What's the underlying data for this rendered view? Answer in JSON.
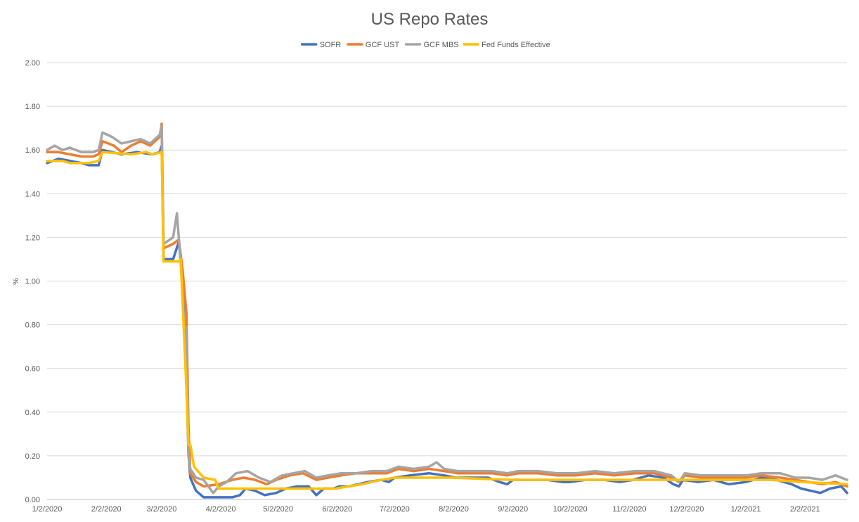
{
  "chart_data": {
    "type": "line",
    "title": "US Repo Rates",
    "xlabel": "",
    "ylabel": "%",
    "ylim": [
      0,
      2.0
    ],
    "y_ticks": [
      "0.00",
      "0.20",
      "0.40",
      "0.60",
      "0.80",
      "1.00",
      "1.20",
      "1.40",
      "1.60",
      "1.80",
      "2.00"
    ],
    "x_ticks": [
      "1/2/2020",
      "2/2/2020",
      "3/2/2020",
      "4/2/2020",
      "5/2/2020",
      "6/2/2020",
      "7/2/2020",
      "8/2/2020",
      "9/2/2020",
      "10/2/2020",
      "11/2/2020",
      "12/2/2020",
      "1/2/2021",
      "2/2/2021"
    ],
    "x_range": [
      "2020-01-02",
      "2021-02-24"
    ],
    "legend_position": "top",
    "grid": true,
    "series": [
      {
        "name": "SOFR",
        "color": "#4472c4",
        "points": [
          [
            "2020-01-02",
            1.54
          ],
          [
            "2020-01-08",
            1.56
          ],
          [
            "2020-01-14",
            1.55
          ],
          [
            "2020-01-20",
            1.54
          ],
          [
            "2020-01-24",
            1.53
          ],
          [
            "2020-01-29",
            1.53
          ],
          [
            "2020-01-31",
            1.6
          ],
          [
            "2020-02-10",
            1.58
          ],
          [
            "2020-02-18",
            1.59
          ],
          [
            "2020-02-26",
            1.58
          ],
          [
            "2020-03-01",
            1.59
          ],
          [
            "2020-03-02",
            1.62
          ],
          [
            "2020-03-03",
            1.1
          ],
          [
            "2020-03-08",
            1.1
          ],
          [
            "2020-03-11",
            1.18
          ],
          [
            "2020-03-13",
            1.0
          ],
          [
            "2020-03-15",
            0.55
          ],
          [
            "2020-03-16",
            0.22
          ],
          [
            "2020-03-17",
            0.1
          ],
          [
            "2020-03-20",
            0.04
          ],
          [
            "2020-03-24",
            0.01
          ],
          [
            "2020-04-01",
            0.01
          ],
          [
            "2020-04-08",
            0.01
          ],
          [
            "2020-04-12",
            0.02
          ],
          [
            "2020-04-15",
            0.05
          ],
          [
            "2020-04-20",
            0.04
          ],
          [
            "2020-04-25",
            0.02
          ],
          [
            "2020-05-01",
            0.03
          ],
          [
            "2020-05-06",
            0.05
          ],
          [
            "2020-05-12",
            0.06
          ],
          [
            "2020-05-18",
            0.06
          ],
          [
            "2020-05-22",
            0.02
          ],
          [
            "2020-05-26",
            0.05
          ],
          [
            "2020-05-31",
            0.05
          ],
          [
            "2020-06-03",
            0.06
          ],
          [
            "2020-06-08",
            0.06
          ],
          [
            "2020-06-13",
            0.07
          ],
          [
            "2020-06-18",
            0.08
          ],
          [
            "2020-06-25",
            0.09
          ],
          [
            "2020-06-29",
            0.08
          ],
          [
            "2020-07-02",
            0.1
          ],
          [
            "2020-07-10",
            0.11
          ],
          [
            "2020-07-20",
            0.12
          ],
          [
            "2020-07-28",
            0.11
          ],
          [
            "2020-08-03",
            0.1
          ],
          [
            "2020-08-12",
            0.1
          ],
          [
            "2020-08-20",
            0.1
          ],
          [
            "2020-08-26",
            0.08
          ],
          [
            "2020-08-30",
            0.07
          ],
          [
            "2020-09-02",
            0.09
          ],
          [
            "2020-09-10",
            0.09
          ],
          [
            "2020-09-20",
            0.09
          ],
          [
            "2020-09-28",
            0.08
          ],
          [
            "2020-10-02",
            0.08
          ],
          [
            "2020-10-10",
            0.09
          ],
          [
            "2020-10-20",
            0.09
          ],
          [
            "2020-10-28",
            0.08
          ],
          [
            "2020-11-04",
            0.09
          ],
          [
            "2020-11-12",
            0.11
          ],
          [
            "2020-11-20",
            0.1
          ],
          [
            "2020-11-25",
            0.07
          ],
          [
            "2020-11-28",
            0.06
          ],
          [
            "2020-11-30",
            0.09
          ],
          [
            "2020-12-08",
            0.08
          ],
          [
            "2020-12-16",
            0.09
          ],
          [
            "2020-12-24",
            0.07
          ],
          [
            "2021-01-02",
            0.08
          ],
          [
            "2021-01-10",
            0.1
          ],
          [
            "2021-01-18",
            0.09
          ],
          [
            "2021-01-26",
            0.07
          ],
          [
            "2021-01-31",
            0.05
          ],
          [
            "2021-02-05",
            0.04
          ],
          [
            "2021-02-10",
            0.03
          ],
          [
            "2021-02-15",
            0.05
          ],
          [
            "2021-02-21",
            0.06
          ],
          [
            "2021-02-24",
            0.03
          ]
        ]
      },
      {
        "name": "GCF UST",
        "color": "#ed7d31",
        "points": [
          [
            "2020-01-02",
            1.59
          ],
          [
            "2020-01-08",
            1.59
          ],
          [
            "2020-01-14",
            1.58
          ],
          [
            "2020-01-20",
            1.57
          ],
          [
            "2020-01-26",
            1.57
          ],
          [
            "2020-01-29",
            1.58
          ],
          [
            "2020-01-31",
            1.64
          ],
          [
            "2020-02-06",
            1.62
          ],
          [
            "2020-02-10",
            1.59
          ],
          [
            "2020-02-15",
            1.62
          ],
          [
            "2020-02-20",
            1.64
          ],
          [
            "2020-02-25",
            1.62
          ],
          [
            "2020-03-01",
            1.66
          ],
          [
            "2020-03-02",
            1.72
          ],
          [
            "2020-03-03",
            1.15
          ],
          [
            "2020-03-08",
            1.17
          ],
          [
            "2020-03-11",
            1.19
          ],
          [
            "2020-03-13",
            1.05
          ],
          [
            "2020-03-15",
            0.85
          ],
          [
            "2020-03-16",
            0.35
          ],
          [
            "2020-03-17",
            0.12
          ],
          [
            "2020-03-20",
            0.08
          ],
          [
            "2020-03-24",
            0.06
          ],
          [
            "2020-04-01",
            0.07
          ],
          [
            "2020-04-08",
            0.09
          ],
          [
            "2020-04-14",
            0.1
          ],
          [
            "2020-04-20",
            0.09
          ],
          [
            "2020-04-26",
            0.07
          ],
          [
            "2020-05-01",
            0.09
          ],
          [
            "2020-05-08",
            0.11
          ],
          [
            "2020-05-15",
            0.12
          ],
          [
            "2020-05-22",
            0.09
          ],
          [
            "2020-05-28",
            0.1
          ],
          [
            "2020-06-04",
            0.11
          ],
          [
            "2020-06-12",
            0.12
          ],
          [
            "2020-06-20",
            0.12
          ],
          [
            "2020-06-28",
            0.12
          ],
          [
            "2020-07-04",
            0.14
          ],
          [
            "2020-07-12",
            0.13
          ],
          [
            "2020-07-20",
            0.14
          ],
          [
            "2020-07-28",
            0.13
          ],
          [
            "2020-08-04",
            0.12
          ],
          [
            "2020-08-12",
            0.12
          ],
          [
            "2020-08-22",
            0.12
          ],
          [
            "2020-08-30",
            0.11
          ],
          [
            "2020-09-05",
            0.12
          ],
          [
            "2020-09-15",
            0.12
          ],
          [
            "2020-09-25",
            0.11
          ],
          [
            "2020-10-05",
            0.11
          ],
          [
            "2020-10-15",
            0.12
          ],
          [
            "2020-10-25",
            0.11
          ],
          [
            "2020-11-05",
            0.12
          ],
          [
            "2020-11-15",
            0.12
          ],
          [
            "2020-11-24",
            0.1
          ],
          [
            "2020-11-28",
            0.08
          ],
          [
            "2020-12-01",
            0.11
          ],
          [
            "2020-12-10",
            0.1
          ],
          [
            "2020-12-20",
            0.1
          ],
          [
            "2021-01-02",
            0.1
          ],
          [
            "2021-01-10",
            0.11
          ],
          [
            "2021-01-20",
            0.1
          ],
          [
            "2021-01-28",
            0.09
          ],
          [
            "2021-02-04",
            0.08
          ],
          [
            "2021-02-11",
            0.07
          ],
          [
            "2021-02-18",
            0.08
          ],
          [
            "2021-02-24",
            0.06
          ]
        ]
      },
      {
        "name": "GCF MBS",
        "color": "#a5a5a5",
        "points": [
          [
            "2020-01-02",
            1.6
          ],
          [
            "2020-01-06",
            1.62
          ],
          [
            "2020-01-10",
            1.6
          ],
          [
            "2020-01-14",
            1.61
          ],
          [
            "2020-01-20",
            1.59
          ],
          [
            "2020-01-26",
            1.59
          ],
          [
            "2020-01-29",
            1.6
          ],
          [
            "2020-01-31",
            1.68
          ],
          [
            "2020-02-05",
            1.66
          ],
          [
            "2020-02-10",
            1.63
          ],
          [
            "2020-02-15",
            1.64
          ],
          [
            "2020-02-20",
            1.65
          ],
          [
            "2020-02-25",
            1.63
          ],
          [
            "2020-03-01",
            1.67
          ],
          [
            "2020-03-02",
            1.71
          ],
          [
            "2020-03-03",
            1.17
          ],
          [
            "2020-03-08",
            1.2
          ],
          [
            "2020-03-10",
            1.31
          ],
          [
            "2020-03-12",
            1.08
          ],
          [
            "2020-03-14",
            0.78
          ],
          [
            "2020-03-15",
            0.79
          ],
          [
            "2020-03-16",
            0.2
          ],
          [
            "2020-03-17",
            0.14
          ],
          [
            "2020-03-20",
            0.1
          ],
          [
            "2020-03-24",
            0.09
          ],
          [
            "2020-03-29",
            0.03
          ],
          [
            "2020-04-01",
            0.06
          ],
          [
            "2020-04-05",
            0.08
          ],
          [
            "2020-04-10",
            0.12
          ],
          [
            "2020-04-16",
            0.13
          ],
          [
            "2020-04-22",
            0.1
          ],
          [
            "2020-04-28",
            0.08
          ],
          [
            "2020-05-04",
            0.11
          ],
          [
            "2020-05-10",
            0.12
          ],
          [
            "2020-05-16",
            0.13
          ],
          [
            "2020-05-22",
            0.1
          ],
          [
            "2020-05-28",
            0.11
          ],
          [
            "2020-06-04",
            0.12
          ],
          [
            "2020-06-12",
            0.12
          ],
          [
            "2020-06-20",
            0.13
          ],
          [
            "2020-06-28",
            0.13
          ],
          [
            "2020-07-04",
            0.15
          ],
          [
            "2020-07-12",
            0.14
          ],
          [
            "2020-07-20",
            0.15
          ],
          [
            "2020-07-24",
            0.17
          ],
          [
            "2020-07-28",
            0.14
          ],
          [
            "2020-08-04",
            0.13
          ],
          [
            "2020-08-14",
            0.13
          ],
          [
            "2020-08-22",
            0.13
          ],
          [
            "2020-08-30",
            0.12
          ],
          [
            "2020-09-05",
            0.13
          ],
          [
            "2020-09-15",
            0.13
          ],
          [
            "2020-09-25",
            0.12
          ],
          [
            "2020-10-05",
            0.12
          ],
          [
            "2020-10-15",
            0.13
          ],
          [
            "2020-10-25",
            0.12
          ],
          [
            "2020-11-05",
            0.13
          ],
          [
            "2020-11-15",
            0.13
          ],
          [
            "2020-11-24",
            0.11
          ],
          [
            "2020-11-28",
            0.08
          ],
          [
            "2020-12-01",
            0.12
          ],
          [
            "2020-12-10",
            0.11
          ],
          [
            "2020-12-20",
            0.11
          ],
          [
            "2021-01-02",
            0.11
          ],
          [
            "2021-01-10",
            0.12
          ],
          [
            "2021-01-20",
            0.12
          ],
          [
            "2021-01-28",
            0.1
          ],
          [
            "2021-02-04",
            0.1
          ],
          [
            "2021-02-11",
            0.09
          ],
          [
            "2021-02-18",
            0.11
          ],
          [
            "2021-02-24",
            0.09
          ]
        ]
      },
      {
        "name": "Fed Funds Effective",
        "color": "#ffc000",
        "points": [
          [
            "2020-01-02",
            1.55
          ],
          [
            "2020-01-10",
            1.55
          ],
          [
            "2020-01-14",
            1.54
          ],
          [
            "2020-01-24",
            1.54
          ],
          [
            "2020-01-29",
            1.55
          ],
          [
            "2020-01-31",
            1.59
          ],
          [
            "2020-02-15",
            1.58
          ],
          [
            "2020-02-23",
            1.59
          ],
          [
            "2020-02-26",
            1.58
          ],
          [
            "2020-03-02",
            1.59
          ],
          [
            "2020-03-03",
            1.09
          ],
          [
            "2020-03-11",
            1.09
          ],
          [
            "2020-03-12",
            1.1
          ],
          [
            "2020-03-13",
            0.9
          ],
          [
            "2020-03-15",
            0.5
          ],
          [
            "2020-03-16",
            0.25
          ],
          [
            "2020-03-17",
            0.25
          ],
          [
            "2020-03-19",
            0.15
          ],
          [
            "2020-03-24",
            0.1
          ],
          [
            "2020-03-30",
            0.09
          ],
          [
            "2020-04-01",
            0.05
          ],
          [
            "2020-05-01",
            0.05
          ],
          [
            "2020-06-01",
            0.05
          ],
          [
            "2020-06-15",
            0.07
          ],
          [
            "2020-06-25",
            0.09
          ],
          [
            "2020-07-02",
            0.1
          ],
          [
            "2020-07-12",
            0.1
          ],
          [
            "2020-08-01",
            0.1
          ],
          [
            "2020-09-01",
            0.09
          ],
          [
            "2020-10-01",
            0.09
          ],
          [
            "2020-11-01",
            0.09
          ],
          [
            "2020-11-24",
            0.09
          ],
          [
            "2020-12-01",
            0.09
          ],
          [
            "2021-01-01",
            0.09
          ],
          [
            "2021-01-15",
            0.09
          ],
          [
            "2021-02-01",
            0.08
          ],
          [
            "2021-02-24",
            0.07
          ]
        ]
      }
    ]
  }
}
